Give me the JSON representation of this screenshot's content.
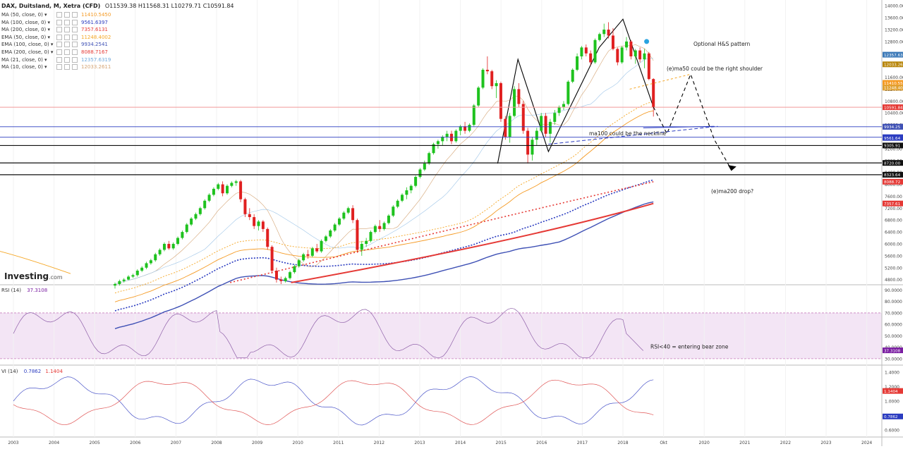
{
  "header": {
    "title": "DAX, Duitsland, M, Xetra (CFD)",
    "ohlc": "O11539.38  H11568.31  L10279.71  C10591.84"
  },
  "legend": [
    {
      "name": "MA (50, close, 0)",
      "value": "11410.5450",
      "color": "#f59a23"
    },
    {
      "name": "MA (100, close, 0)",
      "value": "9561.6397",
      "color": "#2b3cc0"
    },
    {
      "name": "MA (200, close, 0)",
      "value": "7357.6131",
      "color": "#e53935"
    },
    {
      "name": "EMA (50, close, 0)",
      "value": "11248.4002",
      "color": "#f5a623"
    },
    {
      "name": "EMA (100, close, 0)",
      "value": "9934.2541",
      "color": "#3f51b5"
    },
    {
      "name": "EMA (200, close, 0)",
      "value": "8088.7167",
      "color": "#e53935"
    },
    {
      "name": "MA (21, close, 0)",
      "value": "12357.6319",
      "color": "#6fa8dc"
    },
    {
      "name": "MA (10, close, 0)",
      "value": "12033.2611",
      "color": "#d4a373"
    }
  ],
  "logo": {
    "brand": "Investing",
    "suffix": ".com"
  },
  "rsi": {
    "label": "RSI (14)",
    "value": "37.3108",
    "tag": "37.3108",
    "annotation": "RSI<40 = entering bear zone"
  },
  "vi": {
    "label": "VI (14)",
    "plus": "0.7862",
    "minus": "1.1404"
  },
  "annotations": {
    "hs": "Optional H&S pattern",
    "shoulder": "(e)ma50 could be the right shoulder",
    "neckline": "ma100 could be the neckline",
    "drop": "(e)ma200 drop?"
  },
  "price_tags": [
    {
      "label": "12357.63",
      "bg": "#3d7ab8",
      "price": 12357.63
    },
    {
      "label": "12033.26",
      "bg": "#b8860b",
      "price": 12033.26
    },
    {
      "label": "11410.55",
      "bg": "#f59a23",
      "price": 11410.55
    },
    {
      "label": "11248.40",
      "bg": "#e0a030",
      "price": 11248.4
    },
    {
      "label": "10591.84",
      "bg": "#e53935",
      "price": 10591.84
    },
    {
      "label": "9936.99",
      "bg": "#2b3cc0",
      "price": 9936.99
    },
    {
      "label": "9934.25",
      "bg": "#3f51b5",
      "price": 9934.25
    },
    {
      "label": "9584.80",
      "bg": "#2b3cc0",
      "price": 9584.8
    },
    {
      "label": "9561.64",
      "bg": "#2b3cc0",
      "price": 9561.64
    },
    {
      "label": "9305.91",
      "bg": "#111111",
      "price": 9305.91
    },
    {
      "label": "8720.00",
      "bg": "#111111",
      "price": 8720.0
    },
    {
      "label": "8323.64",
      "bg": "#111111",
      "price": 8323.64
    },
    {
      "label": "8088.72",
      "bg": "#e53935",
      "price": 8088.72
    },
    {
      "label": "7357.61",
      "bg": "#e53935",
      "price": 7357.61
    }
  ],
  "rsi_tag": {
    "label": "37.3108",
    "bg": "#7b1fa2"
  },
  "vi_tags": [
    {
      "label": "1.1404",
      "bg": "#e53935",
      "value": 1.1404
    },
    {
      "label": "0.7862",
      "bg": "#2b3cc0",
      "value": 0.7862
    }
  ],
  "chart_data": {
    "type": "candlestick",
    "title": "DAX, Duitsland, M, Xetra (CFD)",
    "x_labels": [
      "2003",
      "2004",
      "2005",
      "2006",
      "2007",
      "2008",
      "2009",
      "2010",
      "2011",
      "2012",
      "2013",
      "2014",
      "2015",
      "2016",
      "2017",
      "2018",
      "Okt",
      "2020",
      "2021",
      "2022",
      "2023",
      "2024"
    ],
    "price_axis": {
      "ticks": [
        14000,
        13600,
        13200,
        12800,
        12400,
        12000,
        11600,
        11200,
        10800,
        10400,
        10000,
        9600,
        9200,
        8800,
        8400,
        8000,
        7600,
        7200,
        6800,
        6400,
        6000,
        5600,
        5200,
        4800
      ],
      "labels": [
        "14000.00",
        "13600.00",
        "13200.00",
        "12800.00",
        "12400.00",
        "12000.00",
        "11600.00",
        "11200.00",
        "10800.00",
        "10400.00",
        "10000.00",
        "9600.00",
        "9200.00",
        "8800.00",
        "8400.00",
        "8000.00",
        "7600.00",
        "7200.00",
        "6800.00",
        "6400.00",
        "6000.00",
        "5600.00",
        "5200.00",
        "4800.00"
      ]
    },
    "rsi_axis": {
      "ticks": [
        90,
        80,
        70,
        60,
        50,
        40,
        30
      ],
      "labels": [
        "90.0000",
        "80.0000",
        "70.0000",
        "60.0000",
        "50.0000",
        "40.0000",
        "30.0000"
      ],
      "levels": [
        70,
        30
      ]
    },
    "vi_axis": {
      "ticks": [
        1.4,
        1.2,
        1.0,
        0.8,
        0.6
      ],
      "labels": [
        "1.4000",
        "1.2000",
        "1.0000",
        "0.8000",
        "0.6000"
      ]
    },
    "horizontal_levels": [
      9305.91,
      8720.0,
      8323.64,
      9936.99,
      9584.8,
      10591.84
    ],
    "last_close": 10591.84,
    "candles": [
      [
        4600,
        4700,
        4500,
        4650
      ],
      [
        4650,
        4800,
        4600,
        4750
      ],
      [
        4750,
        4850,
        4700,
        4800
      ],
      [
        4800,
        4950,
        4780,
        4900
      ],
      [
        4900,
        5000,
        4850,
        4950
      ],
      [
        4950,
        5150,
        4900,
        5100
      ],
      [
        5100,
        5250,
        5050,
        5200
      ],
      [
        5200,
        5400,
        5150,
        5350
      ],
      [
        5350,
        5500,
        5300,
        5450
      ],
      [
        5450,
        5700,
        5400,
        5650
      ],
      [
        5650,
        5850,
        5600,
        5800
      ],
      [
        5800,
        6050,
        5750,
        6000
      ],
      [
        6000,
        6100,
        5800,
        5850
      ],
      [
        5850,
        6050,
        5800,
        6000
      ],
      [
        6000,
        6250,
        5950,
        6200
      ],
      [
        6200,
        6450,
        6150,
        6400
      ],
      [
        6400,
        6700,
        6350,
        6650
      ],
      [
        6650,
        6900,
        6600,
        6850
      ],
      [
        6850,
        7050,
        6800,
        7000
      ],
      [
        7000,
        7250,
        6950,
        7200
      ],
      [
        7200,
        7500,
        7150,
        7450
      ],
      [
        7450,
        7700,
        7400,
        7650
      ],
      [
        7650,
        7900,
        7600,
        7850
      ],
      [
        7850,
        8050,
        7800,
        8000
      ],
      [
        8000,
        8100,
        7600,
        7700
      ],
      [
        7700,
        8000,
        7650,
        7950
      ],
      [
        7950,
        8100,
        7900,
        8050
      ],
      [
        8050,
        8150,
        7950,
        8100
      ],
      [
        8100,
        8150,
        7400,
        7500
      ],
      [
        7500,
        7550,
        6900,
        7000
      ],
      [
        7000,
        7200,
        6800,
        6900
      ],
      [
        6900,
        7000,
        6500,
        6600
      ],
      [
        6600,
        6800,
        6450,
        6750
      ],
      [
        6750,
        6800,
        6400,
        6500
      ],
      [
        6500,
        6550,
        5800,
        5900
      ],
      [
        5900,
        5950,
        5000,
        5100
      ],
      [
        5100,
        5200,
        4700,
        4800
      ],
      [
        4800,
        4900,
        4650,
        4750
      ],
      [
        4750,
        4900,
        4700,
        4850
      ],
      [
        4850,
        5100,
        4800,
        5050
      ],
      [
        5050,
        5300,
        5000,
        5250
      ],
      [
        5250,
        5500,
        5200,
        5450
      ],
      [
        5450,
        5700,
        5400,
        5650
      ],
      [
        5650,
        5800,
        5500,
        5600
      ],
      [
        5600,
        5900,
        5550,
        5850
      ],
      [
        5850,
        6000,
        5700,
        5750
      ],
      [
        5750,
        6150,
        5700,
        6100
      ],
      [
        6100,
        6300,
        6050,
        6250
      ],
      [
        6250,
        6500,
        6200,
        6450
      ],
      [
        6450,
        6700,
        6400,
        6650
      ],
      [
        6650,
        6900,
        6600,
        6850
      ],
      [
        6850,
        7100,
        6800,
        7050
      ],
      [
        7050,
        7250,
        7000,
        7200
      ],
      [
        7200,
        7300,
        6700,
        6800
      ],
      [
        6800,
        6850,
        5700,
        5800
      ],
      [
        5800,
        6100,
        5600,
        6000
      ],
      [
        6000,
        6200,
        5900,
        6100
      ],
      [
        6100,
        6450,
        6050,
        6400
      ],
      [
        6400,
        6650,
        6350,
        6600
      ],
      [
        6600,
        6800,
        6400,
        6500
      ],
      [
        6500,
        6750,
        6450,
        6700
      ],
      [
        6700,
        7000,
        6650,
        6950
      ],
      [
        6950,
        7300,
        6900,
        7250
      ],
      [
        7250,
        7500,
        7200,
        7450
      ],
      [
        7450,
        7700,
        7400,
        7650
      ],
      [
        7650,
        7900,
        7500,
        7800
      ],
      [
        7800,
        8000,
        7700,
        7950
      ],
      [
        7950,
        8300,
        7900,
        8250
      ],
      [
        8250,
        8550,
        8200,
        8500
      ],
      [
        8500,
        8800,
        8450,
        8700
      ],
      [
        8700,
        9100,
        8650,
        9050
      ],
      [
        9050,
        9400,
        9000,
        9350
      ],
      [
        9350,
        9500,
        9200,
        9450
      ],
      [
        9450,
        9650,
        9300,
        9600
      ],
      [
        9600,
        9800,
        9450,
        9700
      ],
      [
        9700,
        9800,
        9350,
        9450
      ],
      [
        9450,
        9850,
        9400,
        9800
      ],
      [
        9800,
        10000,
        9650,
        9950
      ],
      [
        9950,
        10100,
        9700,
        9800
      ],
      [
        9800,
        10050,
        9750,
        10000
      ],
      [
        10000,
        10700,
        9950,
        10650
      ],
      [
        10650,
        11300,
        10600,
        11250
      ],
      [
        11250,
        11900,
        11200,
        11850
      ],
      [
        11850,
        12300,
        11700,
        11800
      ],
      [
        11800,
        11850,
        11200,
        11300
      ],
      [
        11300,
        11500,
        10900,
        11400
      ],
      [
        11400,
        11450,
        10100,
        10200
      ],
      [
        10200,
        10300,
        9500,
        9600
      ],
      [
        9600,
        10400,
        9400,
        10300
      ],
      [
        10300,
        11300,
        10250,
        11200
      ],
      [
        11200,
        11400,
        10600,
        10700
      ],
      [
        10700,
        10800,
        9700,
        9800
      ],
      [
        9800,
        9900,
        8700,
        9000
      ],
      [
        9000,
        9600,
        8800,
        9500
      ],
      [
        9500,
        9900,
        9300,
        9800
      ],
      [
        9800,
        10400,
        9750,
        10300
      ],
      [
        10300,
        10400,
        9600,
        9700
      ],
      [
        9700,
        10200,
        9400,
        10100
      ],
      [
        10100,
        10500,
        10000,
        10400
      ],
      [
        10400,
        10650,
        10300,
        10600
      ],
      [
        10600,
        10800,
        10500,
        10700
      ],
      [
        10700,
        11500,
        10650,
        11450
      ],
      [
        11450,
        11900,
        11400,
        11850
      ],
      [
        11850,
        12400,
        11800,
        12300
      ],
      [
        12300,
        12650,
        12200,
        12600
      ],
      [
        12600,
        12700,
        12300,
        12400
      ],
      [
        12400,
        12500,
        12000,
        12100
      ],
      [
        12100,
        12900,
        12050,
        12850
      ],
      [
        12850,
        13100,
        12800,
        13050
      ],
      [
        13050,
        13400,
        12950,
        13200
      ],
      [
        13200,
        13450,
        12900,
        13000
      ],
      [
        13000,
        13250,
        12500,
        12550
      ],
      [
        12550,
        12600,
        12000,
        12100
      ],
      [
        12100,
        12650,
        12050,
        12600
      ],
      [
        12600,
        12950,
        12500,
        12800
      ],
      [
        12800,
        12850,
        12200,
        12300
      ],
      [
        12300,
        12550,
        12050,
        12500
      ],
      [
        12500,
        12600,
        12100,
        12200
      ],
      [
        12200,
        12550,
        11900,
        12400
      ],
      [
        12400,
        12450,
        11500,
        11539
      ],
      [
        11539,
        11568,
        10279,
        10591.84
      ]
    ]
  }
}
